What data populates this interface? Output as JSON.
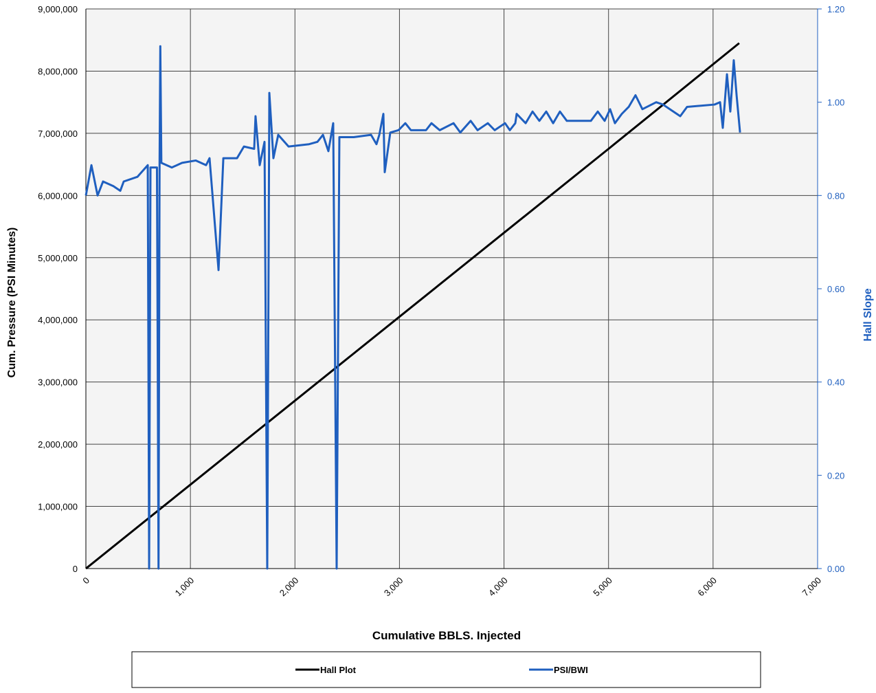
{
  "chart_data": {
    "type": "line",
    "x_label": "Cumulative BBLS. Injected",
    "y_label": "Cum. Pressure (PSI Minutes)",
    "y2_label": "Hall Slope",
    "xlim": [
      0,
      7000
    ],
    "xticks": [
      0,
      {
        "value": 1000,
        "label": "1,000"
      },
      {
        "value": 2000,
        "label": "2,000"
      },
      {
        "value": 3000,
        "label": "3,000"
      },
      {
        "value": 4000,
        "label": "4,000"
      },
      {
        "value": 5000,
        "label": "5,000"
      },
      {
        "value": 6000,
        "label": "6,000"
      },
      {
        "value": 7000,
        "label": "7,000"
      }
    ],
    "ylim": [
      0,
      9000000
    ],
    "yticks": [
      0,
      {
        "value": 1000000,
        "label": "1,000,000"
      },
      {
        "value": 2000000,
        "label": "2,000,000"
      },
      {
        "value": 3000000,
        "label": "3,000,000"
      },
      {
        "value": 4000000,
        "label": "4,000,000"
      },
      {
        "value": 5000000,
        "label": "5,000,000"
      },
      {
        "value": 6000000,
        "label": "6,000,000"
      },
      {
        "value": 7000000,
        "label": "7,000,000"
      },
      {
        "value": 8000000,
        "label": "8,000,000"
      },
      {
        "value": 9000000,
        "label": "9,000,000"
      }
    ],
    "y2lim": [
      0,
      1.2
    ],
    "y2ticks": [
      {
        "value": 0,
        "label": "0.00"
      },
      {
        "value": 0.2,
        "label": "0.20"
      },
      {
        "value": 0.4,
        "label": "0.40"
      },
      {
        "value": 0.6,
        "label": "0.60"
      },
      {
        "value": 0.8,
        "label": "0.80"
      },
      {
        "value": 1.0,
        "label": "1.00"
      },
      {
        "value": 1.2,
        "label": "1.20"
      }
    ],
    "grid": true,
    "legend": "bottom",
    "series": [
      {
        "name": "Hall Plot",
        "color": "#000000",
        "x": [
          0,
          1000,
          2000,
          3000,
          4000,
          5000,
          6250
        ],
        "values": [
          0,
          1350000,
          2700000,
          4050000,
          5400000,
          6750000,
          8450000
        ]
      },
      {
        "name": "PSI/BWI",
        "color": "#1f5fbf",
        "axis": "y2",
        "x": [
          0,
          53,
          112,
          164,
          263,
          329,
          362,
          493,
          592,
          605,
          618,
          680,
          695,
          705,
          712,
          722,
          822,
          920,
          1052,
          1150,
          1183,
          1269,
          1315,
          1446,
          1512,
          1610,
          1623,
          1663,
          1709,
          1735,
          1755,
          1794,
          1840,
          1939,
          2136,
          2215,
          2268,
          2320,
          2366,
          2399,
          2425,
          2563,
          2728,
          2780,
          2807,
          2846,
          2859,
          2912,
          2991,
          3056,
          3109,
          3254,
          3306,
          3385,
          3517,
          3582,
          3681,
          3747,
          3845,
          3911,
          4010,
          4056,
          4108,
          4121,
          4207,
          4273,
          4338,
          4404,
          4470,
          4535,
          4601,
          4667,
          4831,
          4897,
          4963,
          5015,
          5061,
          5127,
          5193,
          5258,
          5324,
          5456,
          5521,
          5587,
          5686,
          5751,
          6014,
          6067,
          6093,
          6133,
          6165,
          6198,
          6225,
          6258
        ],
        "values": [
          0.8,
          0.865,
          0.8,
          0.83,
          0.82,
          0.81,
          0.83,
          0.84,
          0.865,
          0,
          0.86,
          0.86,
          0,
          0.87,
          1.12,
          0.87,
          0.86,
          0.87,
          0.875,
          0.865,
          0.88,
          0.64,
          0.88,
          0.88,
          0.905,
          0.9,
          0.97,
          0.865,
          0.915,
          0,
          1.02,
          0.88,
          0.93,
          0.905,
          0.91,
          0.915,
          0.93,
          0.895,
          0.955,
          0,
          0.925,
          0.925,
          0.93,
          0.91,
          0.93,
          0.975,
          0.85,
          0.935,
          0.94,
          0.955,
          0.94,
          0.94,
          0.955,
          0.94,
          0.955,
          0.935,
          0.96,
          0.94,
          0.955,
          0.94,
          0.955,
          0.94,
          0.955,
          0.975,
          0.955,
          0.98,
          0.96,
          0.98,
          0.955,
          0.98,
          0.96,
          0.96,
          0.96,
          0.98,
          0.96,
          0.985,
          0.955,
          0.975,
          0.99,
          1.015,
          0.985,
          1.0,
          0.995,
          0.985,
          0.97,
          0.99,
          0.995,
          1.0,
          0.945,
          1.06,
          0.98,
          1.09,
          1.015,
          0.935
        ]
      }
    ]
  }
}
